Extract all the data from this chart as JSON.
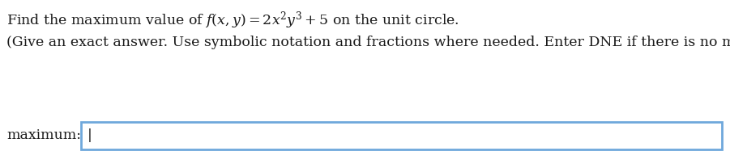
{
  "line1": "Find the maximum value of $f(x, y) = 2x^2y^3 + 5$ on the unit circle.",
  "line2": "(Give an exact answer. Use symbolic notation and fractions where needed. Enter DNE if there is no maximum.)",
  "label": "maximum:",
  "bg_color": "#ffffff",
  "text_color": "#1a1a1a",
  "box_border_color": "#6fa8dc",
  "box_fill_color": "#ffffff",
  "font_size_line1": 12.5,
  "font_size_line2": 12.5,
  "font_size_label": 12.5,
  "fig_width": 9.01,
  "fig_height": 2.08,
  "dpi": 100
}
